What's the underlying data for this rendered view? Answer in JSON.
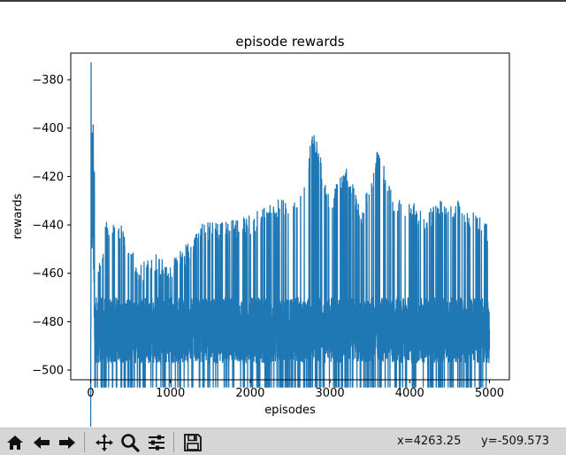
{
  "chart_data": {
    "type": "line",
    "title": "episode rewards",
    "xlabel": "episodes",
    "ylabel": "rewards",
    "xlim": [
      -250,
      5250
    ],
    "ylim": [
      -504,
      -369
    ],
    "xticks": [
      0,
      1000,
      2000,
      3000,
      4000,
      5000
    ],
    "yticks": [
      -380,
      -400,
      -420,
      -440,
      -460,
      -480,
      -500
    ],
    "grid": false,
    "series_color": "#1f77b4",
    "series": [
      {
        "x_range": [
          0,
          5000
        ],
        "num_points": 5000,
        "floor": -507,
        "typical_band": [
          -497,
          -470
        ],
        "early_peak": {
          "x": 5,
          "value": -373
        },
        "upper_envelope": [
          {
            "x": 0,
            "value": -490
          },
          {
            "x": 5,
            "value": -373
          },
          {
            "x": 15,
            "value": -400
          },
          {
            "x": 30,
            "value": -386
          },
          {
            "x": 60,
            "value": -455
          },
          {
            "x": 100,
            "value": -465
          },
          {
            "x": 200,
            "value": -446
          },
          {
            "x": 400,
            "value": -447
          },
          {
            "x": 600,
            "value": -465
          },
          {
            "x": 800,
            "value": -459
          },
          {
            "x": 1000,
            "value": -463
          },
          {
            "x": 1200,
            "value": -456
          },
          {
            "x": 1400,
            "value": -447
          },
          {
            "x": 1600,
            "value": -447
          },
          {
            "x": 1800,
            "value": -446
          },
          {
            "x": 2000,
            "value": -444
          },
          {
            "x": 2200,
            "value": -440
          },
          {
            "x": 2400,
            "value": -437
          },
          {
            "x": 2600,
            "value": -437
          },
          {
            "x": 2800,
            "value": -408
          },
          {
            "x": 3000,
            "value": -437
          },
          {
            "x": 3200,
            "value": -422
          },
          {
            "x": 3400,
            "value": -442
          },
          {
            "x": 3600,
            "value": -415
          },
          {
            "x": 3800,
            "value": -437
          },
          {
            "x": 4000,
            "value": -437
          },
          {
            "x": 4200,
            "value": -443
          },
          {
            "x": 4400,
            "value": -437
          },
          {
            "x": 4600,
            "value": -437
          },
          {
            "x": 4800,
            "value": -443
          },
          {
            "x": 5000,
            "value": -448
          }
        ],
        "spikes": [
          {
            "x": 2810,
            "value": -408
          },
          {
            "x": 3220,
            "value": -422
          },
          {
            "x": 3610,
            "value": -415
          }
        ]
      }
    ]
  },
  "toolbar": {
    "buttons": [
      {
        "name": "home-icon"
      },
      {
        "name": "back-arrow-icon"
      },
      {
        "name": "forward-arrow-icon"
      },
      {
        "name": "pan-icon"
      },
      {
        "name": "zoom-icon"
      },
      {
        "name": "configure-subplots-icon"
      },
      {
        "name": "save-icon"
      }
    ],
    "coord_x": "x=4263.25",
    "coord_y": "y=-509.573"
  }
}
